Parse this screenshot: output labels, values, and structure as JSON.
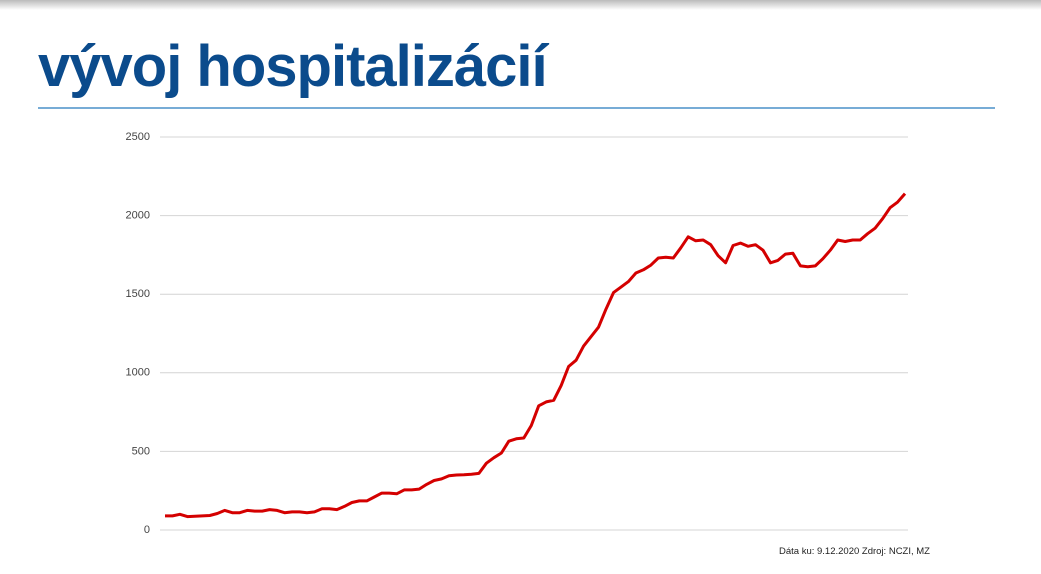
{
  "chart_data": {
    "type": "line",
    "title": "vývoj hospitalizácií",
    "source": "Dáta ku: 9.12.2020 Zdroj: NCZI, MZ",
    "color": "#d40000",
    "values": [
      90,
      90,
      100,
      85,
      88,
      90,
      92,
      105,
      125,
      110,
      110,
      125,
      120,
      120,
      130,
      125,
      110,
      115,
      115,
      110,
      115,
      135,
      135,
      130,
      150,
      175,
      185,
      185,
      210,
      235,
      235,
      230,
      255,
      255,
      260,
      290,
      315,
      325,
      345,
      350,
      352,
      355,
      360,
      425,
      460,
      490,
      565,
      580,
      585,
      665,
      790,
      815,
      825,
      920,
      1040,
      1080,
      1170,
      1230,
      1290,
      1405,
      1510,
      1545,
      1580,
      1635,
      1655,
      1685,
      1730,
      1735,
      1730,
      1795,
      1865,
      1840,
      1845,
      1815,
      1745,
      1700,
      1810,
      1825,
      1805,
      1815,
      1780,
      1700,
      1715,
      1755,
      1760,
      1680,
      1675,
      1680,
      1725,
      1780,
      1845,
      1835,
      1845,
      1845,
      1885,
      1920,
      1980,
      2050,
      2085,
      2140
    ],
    "ylim": [
      0,
      2500
    ],
    "yticks": [
      0,
      500,
      1000,
      1500,
      2000,
      2500
    ],
    "grid": true
  }
}
